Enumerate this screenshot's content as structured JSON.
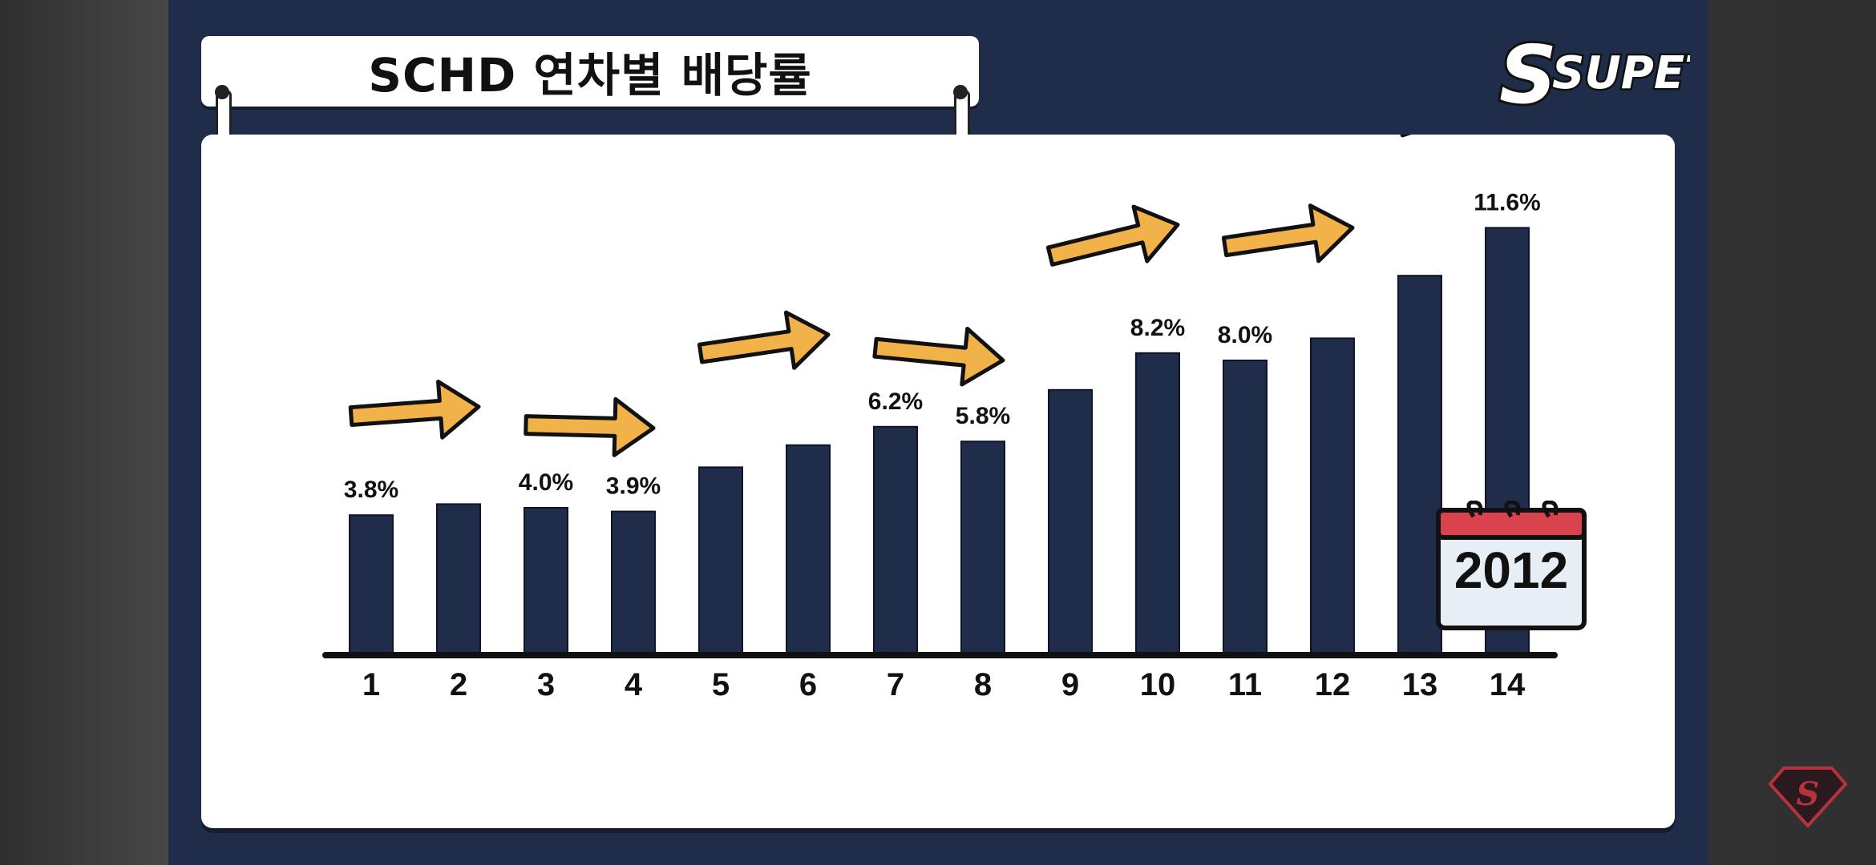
{
  "title": "SCHD 연차별 배당률",
  "logo": {
    "text": "SUPETV",
    "icon": "superman-s-logo"
  },
  "calendar": {
    "year": "2012",
    "icon": "calendar-icon"
  },
  "colors": {
    "background": "#1f2d4a",
    "bar": "#1f2d4a",
    "arrow": "#f2b24a",
    "calendar_header": "#d9434d"
  },
  "chart_data": {
    "type": "bar",
    "title": "SCHD 연차별 배당률",
    "xlabel": "",
    "ylabel": "",
    "categories": [
      "1",
      "2",
      "3",
      "4",
      "5",
      "6",
      "7",
      "8",
      "9",
      "10",
      "11",
      "12",
      "13",
      "14"
    ],
    "values": [
      3.8,
      4.1,
      4.0,
      3.9,
      5.1,
      5.7,
      6.2,
      5.8,
      7.2,
      8.2,
      8.0,
      8.6,
      10.3,
      11.6
    ],
    "data_labels": [
      "3.8%",
      "",
      "4.0%",
      "3.9%",
      "",
      "",
      "6.2%",
      "5.8%",
      "",
      "8.2%",
      "8.0%",
      "",
      "",
      "11.6%"
    ],
    "ylim": [
      0,
      12
    ],
    "grid": false,
    "trend_arrows": "up-right"
  }
}
